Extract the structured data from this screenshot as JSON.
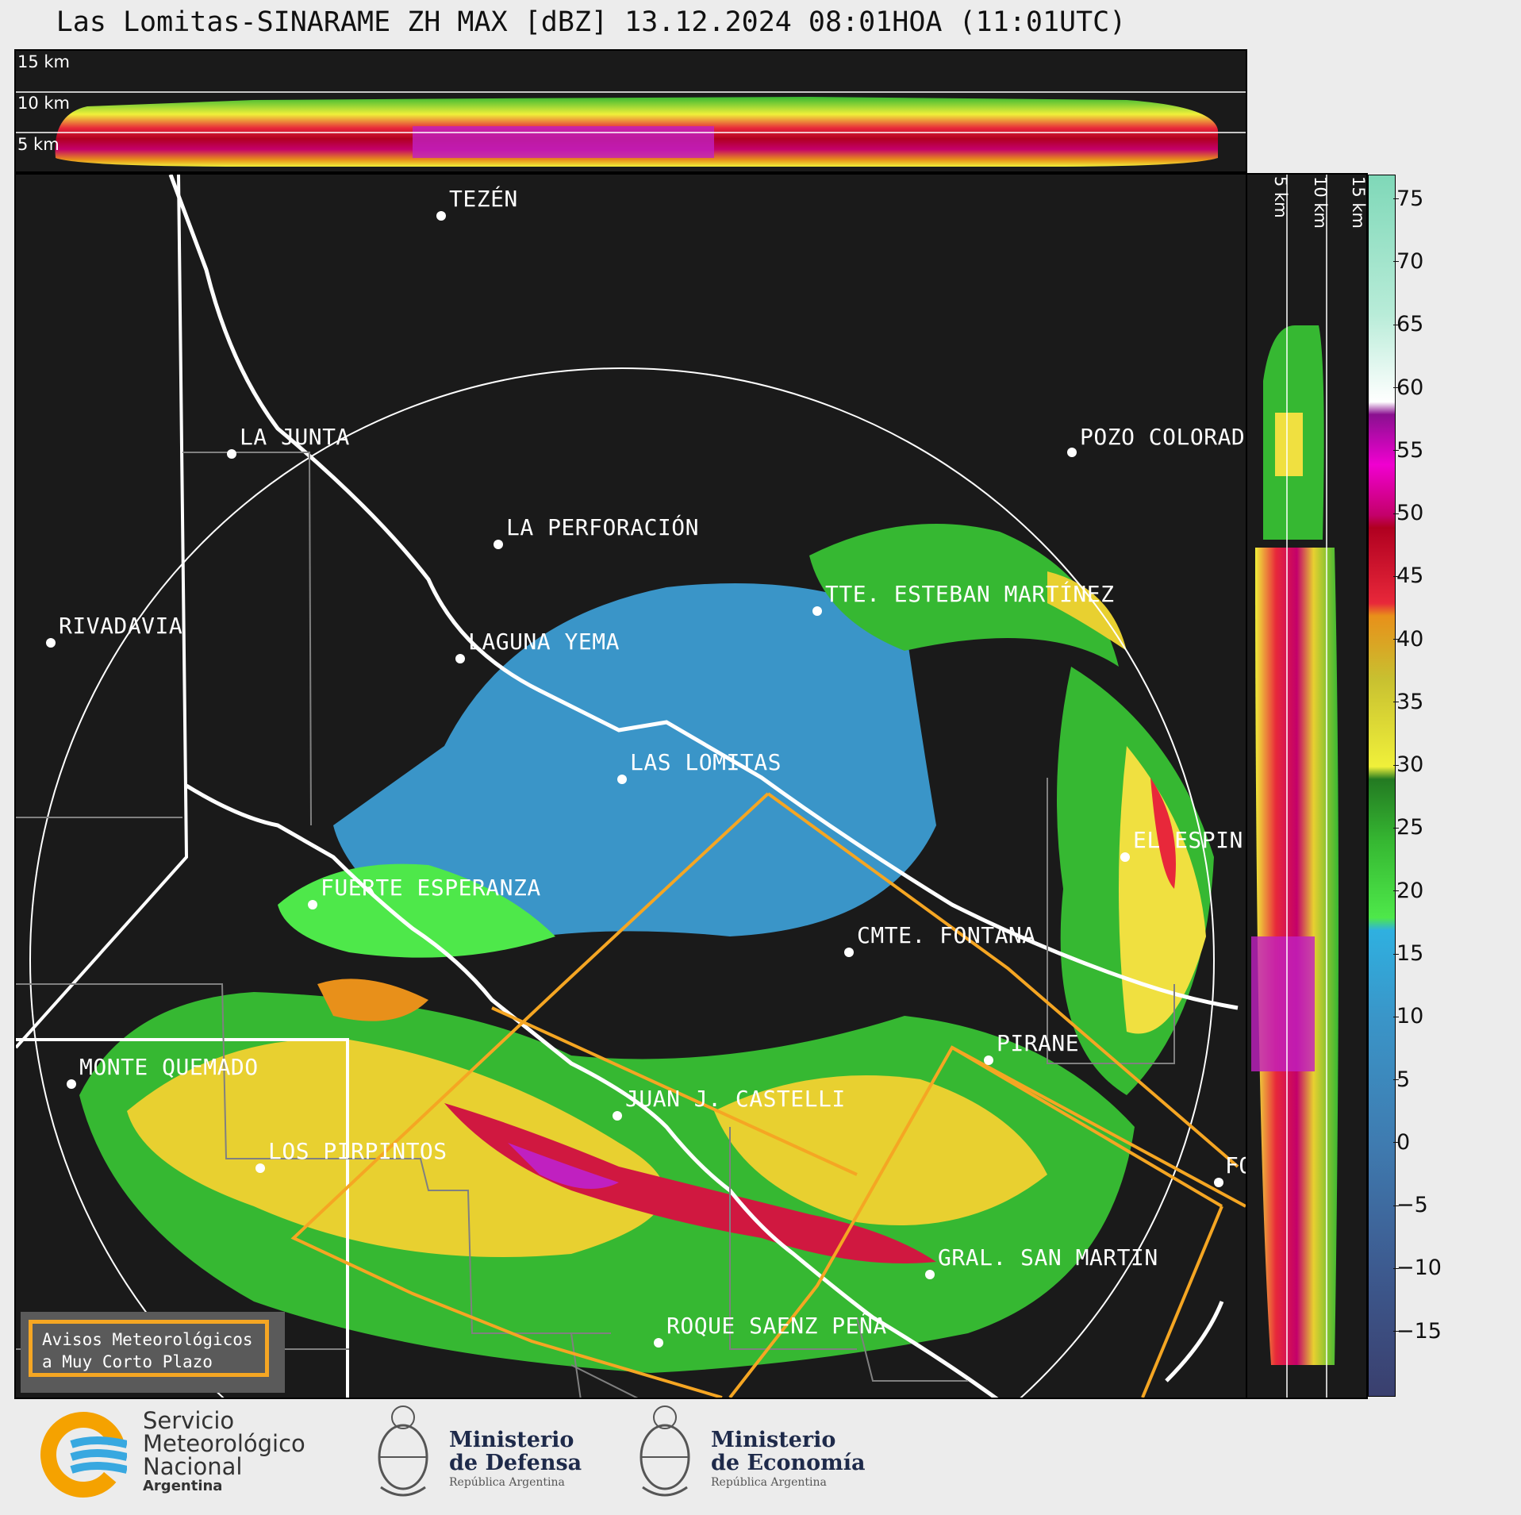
{
  "title": "Las Lomitas-SINARAME ZH MAX [dBZ] 13.12.2024 08:01HOA (11:01UTC)",
  "top_cross_section": {
    "height_labels": [
      "15 km",
      "10 km",
      "5 km"
    ]
  },
  "right_cross_section": {
    "height_labels": [
      "5 km",
      "10 km",
      "15 km"
    ]
  },
  "map": {
    "radar_site": "LAS LOMITAS",
    "places": [
      {
        "id": "tezen",
        "label": "TEZÉN"
      },
      {
        "id": "la-junta",
        "label": "LA JUNTA"
      },
      {
        "id": "pozo-colorado",
        "label": "POZO COLORAD"
      },
      {
        "id": "la-perforacion",
        "label": "LA PERFORACIÓN"
      },
      {
        "id": "tte-esteban-martinez",
        "label": "TTE. ESTEBAN MARTÍNEZ"
      },
      {
        "id": "rivadavia",
        "label": "RIVADAVIA"
      },
      {
        "id": "laguna-yema",
        "label": "LAGUNA YEMA"
      },
      {
        "id": "las-lomitas",
        "label": "LAS LOMITAS"
      },
      {
        "id": "el-espin",
        "label": "EL ESPIN"
      },
      {
        "id": "fuerte-esperanza",
        "label": "FUERTE ESPERANZA"
      },
      {
        "id": "cmte-fontana",
        "label": "CMTE. FONTANA"
      },
      {
        "id": "pirane",
        "label": "PIRANE"
      },
      {
        "id": "monte-quemado",
        "label": "MONTE QUEMADO"
      },
      {
        "id": "juan-j-castelli",
        "label": "JUAN J. CASTELLI"
      },
      {
        "id": "los-pirpintos",
        "label": "LOS PIRPINTOS"
      },
      {
        "id": "fo",
        "label": "FO"
      },
      {
        "id": "gral-san-martin",
        "label": "GRAL. SAN MARTIN"
      },
      {
        "id": "roque-saenz-pena",
        "label": "ROQUE SAENZ PEÑA"
      }
    ]
  },
  "colorbar": {
    "unit": "dBZ",
    "ticks": [
      "75",
      "70",
      "65",
      "60",
      "55",
      "50",
      "45",
      "40",
      "35",
      "30",
      "25",
      "20",
      "15",
      "10",
      "5",
      "0",
      "−5",
      "−10",
      "−15"
    ],
    "stops": [
      {
        "value": -20,
        "color": "#3a3f6e"
      },
      {
        "value": -10,
        "color": "#3d5a8f"
      },
      {
        "value": 0,
        "color": "#3f7bb0"
      },
      {
        "value": 10,
        "color": "#3a95c8"
      },
      {
        "value": 17,
        "color": "#2fb0e0"
      },
      {
        "value": 18,
        "color": "#4ee84a"
      },
      {
        "value": 24,
        "color": "#36b832"
      },
      {
        "value": 29,
        "color": "#237a22"
      },
      {
        "value": 30,
        "color": "#f0f03a"
      },
      {
        "value": 37,
        "color": "#c8c030"
      },
      {
        "value": 42,
        "color": "#e8901a"
      },
      {
        "value": 43,
        "color": "#e8283a"
      },
      {
        "value": 49,
        "color": "#b00020"
      },
      {
        "value": 50,
        "color": "#c4006a"
      },
      {
        "value": 54,
        "color": "#f000d0"
      },
      {
        "value": 58,
        "color": "#8a1090"
      },
      {
        "value": 59,
        "color": "#ffffff"
      },
      {
        "value": 66,
        "color": "#b8ecd8"
      },
      {
        "value": 77,
        "color": "#7fd8b8"
      }
    ]
  },
  "warning_box": {
    "line1": "Avisos Meteorológicos",
    "line2": "a Muy Corto Plazo",
    "border_color": "#f5a623"
  },
  "logos": {
    "smn": {
      "line1": "Servicio",
      "line2": "Meteorológico",
      "line3": "Nacional",
      "line4": "Argentina"
    },
    "defensa": {
      "line1": "Ministerio",
      "line2": "de Defensa",
      "line3": "República Argentina"
    },
    "economia": {
      "line1": "Ministerio",
      "line2": "de Economía",
      "line3": "República Argentina"
    }
  }
}
